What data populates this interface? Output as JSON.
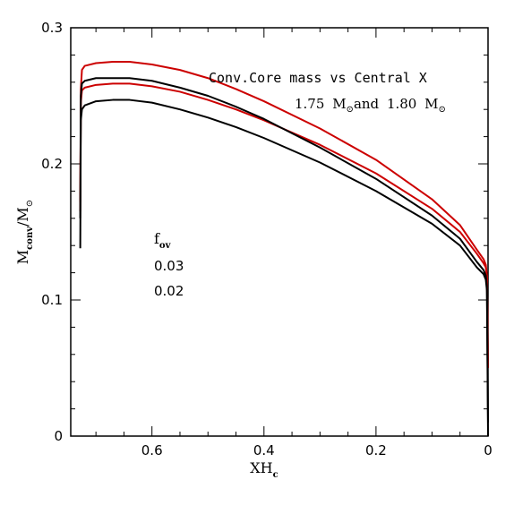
{
  "chart_data": {
    "type": "line",
    "annotation_title": "Conv.Core mass vs Central X",
    "annotation_masses": {
      "m1": "1.75",
      "and": "and",
      "m2": "1.80",
      "unit": "M",
      "unit_sub": "⊙"
    },
    "xlabel": {
      "main": "XH",
      "sub": "c"
    },
    "ylabel": {
      "main": "M",
      "sub": "conv",
      "sep": "/M",
      "sub2": "⊙"
    },
    "xlim": [
      0.745,
      0
    ],
    "ylim": [
      0,
      0.3
    ],
    "x_ticks": [
      "0.6",
      "0.4",
      "0.2",
      "0"
    ],
    "x_tick_values": [
      0.6,
      0.4,
      0.2,
      0
    ],
    "y_ticks": [
      "0",
      "0.1",
      "0.2",
      "0.3"
    ],
    "y_tick_values": [
      0,
      0.1,
      0.2,
      0.3
    ],
    "legend": {
      "title": "f",
      "title_sub": "ov",
      "entries": [
        {
          "label": "0.03",
          "color": "#cc0000"
        },
        {
          "label": "0.02",
          "color": "#000000"
        }
      ]
    },
    "series": [
      {
        "color": "#cc0000",
        "x": [
          0.728,
          0.727,
          0.725,
          0.72,
          0.7,
          0.67,
          0.64,
          0.6,
          0.55,
          0.5,
          0.45,
          0.4,
          0.3,
          0.2,
          0.1,
          0.05,
          0.02,
          0.008,
          0.004,
          0.002,
          0.0
        ],
        "y": [
          0.172,
          0.255,
          0.269,
          0.272,
          0.274,
          0.275,
          0.275,
          0.273,
          0.269,
          0.263,
          0.255,
          0.246,
          0.226,
          0.203,
          0.174,
          0.155,
          0.137,
          0.13,
          0.126,
          0.118,
          0.05
        ]
      },
      {
        "color": "#cc0000",
        "x": [
          0.728,
          0.727,
          0.725,
          0.72,
          0.7,
          0.67,
          0.64,
          0.6,
          0.55,
          0.5,
          0.45,
          0.4,
          0.3,
          0.2,
          0.1,
          0.05,
          0.02,
          0.008,
          0.004,
          0.002,
          0.0
        ],
        "y": [
          0.165,
          0.245,
          0.254,
          0.256,
          0.258,
          0.259,
          0.259,
          0.257,
          0.253,
          0.247,
          0.24,
          0.232,
          0.214,
          0.193,
          0.167,
          0.15,
          0.134,
          0.127,
          0.124,
          0.117,
          0.05
        ]
      },
      {
        "color": "#000000",
        "x": [
          0.728,
          0.727,
          0.725,
          0.72,
          0.7,
          0.67,
          0.64,
          0.6,
          0.55,
          0.5,
          0.45,
          0.4,
          0.3,
          0.2,
          0.1,
          0.05,
          0.02,
          0.008,
          0.004,
          0.002,
          0.0
        ],
        "y": [
          0.16,
          0.25,
          0.259,
          0.261,
          0.263,
          0.263,
          0.263,
          0.261,
          0.256,
          0.25,
          0.242,
          0.233,
          0.212,
          0.189,
          0.162,
          0.145,
          0.128,
          0.122,
          0.118,
          0.11,
          0.01
        ]
      },
      {
        "color": "#000000",
        "x": [
          0.728,
          0.727,
          0.725,
          0.72,
          0.7,
          0.67,
          0.64,
          0.6,
          0.55,
          0.5,
          0.45,
          0.4,
          0.3,
          0.2,
          0.1,
          0.05,
          0.02,
          0.008,
          0.004,
          0.002,
          0.0
        ],
        "y": [
          0.138,
          0.232,
          0.24,
          0.243,
          0.246,
          0.247,
          0.247,
          0.245,
          0.24,
          0.234,
          0.227,
          0.219,
          0.201,
          0.18,
          0.156,
          0.14,
          0.124,
          0.119,
          0.115,
          0.107,
          0.0
        ]
      }
    ]
  }
}
